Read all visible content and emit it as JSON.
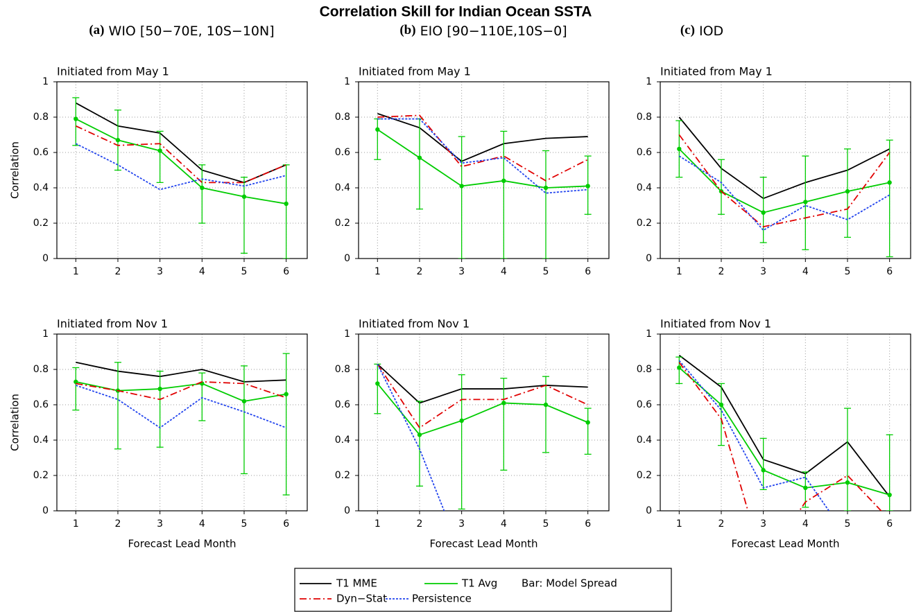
{
  "title": "Correlation Skill for Indian Ocean SSTA",
  "column_titles": [
    {
      "label": "(a)",
      "text": "WIO [50−70E, 10S−10N]"
    },
    {
      "label": "(b)",
      "text": "EIO [90−110E,10S−0]"
    },
    {
      "label": "(c)",
      "text": "IOD"
    }
  ],
  "legend_note": "Bar: Model Spread",
  "chart_data": [
    {
      "type": "line",
      "title": "Initiated from May 1",
      "y_label": "Correlation",
      "x": [
        1,
        2,
        3,
        4,
        5,
        6
      ],
      "xlim": [
        0.55,
        6.5
      ],
      "xticks": [
        1,
        2,
        3,
        4,
        5,
        6
      ],
      "ylim": [
        0,
        1
      ],
      "yticks": [
        0,
        0.2,
        0.4,
        0.6,
        0.8,
        1
      ],
      "grid": true,
      "series": [
        {
          "name": "T1 MME",
          "color": "#000000",
          "style": "solid",
          "values": [
            0.88,
            0.75,
            0.71,
            0.5,
            0.43,
            0.53
          ]
        },
        {
          "name": "T1 Avg",
          "color": "#00cc00",
          "style": "solid",
          "markers": true,
          "values": [
            0.79,
            0.67,
            0.61,
            0.4,
            0.35,
            0.31
          ],
          "low": [
            0.64,
            0.5,
            0.43,
            0.2,
            0.03,
            0.0
          ],
          "high": [
            0.91,
            0.84,
            0.72,
            0.53,
            0.46,
            0.53
          ]
        },
        {
          "name": "Dyn−Stat",
          "color": "#e00000",
          "style": "dashdot",
          "values": [
            0.75,
            0.64,
            0.65,
            0.43,
            0.43,
            0.53
          ]
        },
        {
          "name": "Persistence",
          "color": "#2244ee",
          "style": "dashed",
          "values": [
            0.65,
            0.53,
            0.39,
            0.45,
            0.41,
            0.47
          ]
        }
      ]
    },
    {
      "type": "line",
      "title": "Initiated from May 1",
      "x": [
        1,
        2,
        3,
        4,
        5,
        6
      ],
      "xlim": [
        0.55,
        6.5
      ],
      "xticks": [
        1,
        2,
        3,
        4,
        5,
        6
      ],
      "ylim": [
        0,
        1
      ],
      "yticks": [
        0,
        0.2,
        0.4,
        0.6,
        0.8,
        1
      ],
      "grid": true,
      "series": [
        {
          "name": "T1 MME",
          "color": "#000000",
          "style": "solid",
          "values": [
            0.82,
            0.74,
            0.55,
            0.65,
            0.68,
            0.69
          ]
        },
        {
          "name": "T1 Avg",
          "color": "#00cc00",
          "style": "solid",
          "markers": true,
          "values": [
            0.73,
            0.57,
            0.41,
            0.44,
            0.4,
            0.41
          ],
          "low": [
            0.56,
            0.28,
            0.0,
            0.0,
            0.0,
            0.25
          ],
          "high": [
            0.79,
            0.79,
            0.69,
            0.72,
            0.61,
            0.58
          ]
        },
        {
          "name": "Dyn−Stat",
          "color": "#e00000",
          "style": "dashdot",
          "values": [
            0.8,
            0.81,
            0.52,
            0.58,
            0.44,
            0.56
          ]
        },
        {
          "name": "Persistence",
          "color": "#2244ee",
          "style": "dashed",
          "values": [
            0.79,
            0.79,
            0.54,
            0.57,
            0.37,
            0.39
          ]
        }
      ]
    },
    {
      "type": "line",
      "title": "Initiated from May 1",
      "x": [
        1,
        2,
        3,
        4,
        5,
        6
      ],
      "xlim": [
        0.55,
        6.5
      ],
      "xticks": [
        1,
        2,
        3,
        4,
        5,
        6
      ],
      "ylim": [
        0,
        1
      ],
      "yticks": [
        0,
        0.2,
        0.4,
        0.6,
        0.8,
        1
      ],
      "grid": true,
      "series": [
        {
          "name": "T1 MME",
          "color": "#000000",
          "style": "solid",
          "values": [
            0.8,
            0.51,
            0.34,
            0.43,
            0.5,
            0.62
          ]
        },
        {
          "name": "T1 Avg",
          "color": "#00cc00",
          "style": "solid",
          "markers": true,
          "values": [
            0.62,
            0.38,
            0.26,
            0.32,
            0.38,
            0.43
          ],
          "low": [
            0.46,
            0.25,
            0.09,
            0.05,
            0.12,
            0.01
          ],
          "high": [
            0.78,
            0.56,
            0.46,
            0.58,
            0.62,
            0.67
          ]
        },
        {
          "name": "Dyn−Stat",
          "color": "#e00000",
          "style": "dashdot",
          "values": [
            0.7,
            0.38,
            0.18,
            0.23,
            0.28,
            0.6
          ]
        },
        {
          "name": "Persistence",
          "color": "#2244ee",
          "style": "dashed",
          "values": [
            0.58,
            0.43,
            0.16,
            0.3,
            0.22,
            0.36
          ]
        }
      ]
    },
    {
      "type": "line",
      "title": "Initiated from Nov 1",
      "y_label": "Correlation",
      "x_label": "Forecast Lead Month",
      "x": [
        1,
        2,
        3,
        4,
        5,
        6
      ],
      "xlim": [
        0.55,
        6.5
      ],
      "xticks": [
        1,
        2,
        3,
        4,
        5,
        6
      ],
      "ylim": [
        0,
        1
      ],
      "yticks": [
        0,
        0.2,
        0.4,
        0.6,
        0.8,
        1
      ],
      "grid": true,
      "series": [
        {
          "name": "T1 MME",
          "color": "#000000",
          "style": "solid",
          "values": [
            0.84,
            0.79,
            0.76,
            0.8,
            0.73,
            0.74
          ]
        },
        {
          "name": "T1 Avg",
          "color": "#00cc00",
          "style": "solid",
          "markers": true,
          "values": [
            0.73,
            0.68,
            0.69,
            0.72,
            0.62,
            0.66
          ],
          "low": [
            0.57,
            0.35,
            0.36,
            0.51,
            0.21,
            0.09
          ],
          "high": [
            0.81,
            0.84,
            0.79,
            0.78,
            0.82,
            0.89
          ]
        },
        {
          "name": "Dyn−Stat",
          "color": "#e00000",
          "style": "dashdot",
          "values": [
            0.72,
            0.68,
            0.63,
            0.73,
            0.72,
            0.64
          ]
        },
        {
          "name": "Persistence",
          "color": "#2244ee",
          "style": "dashed",
          "values": [
            0.71,
            0.63,
            0.47,
            0.64,
            0.56,
            0.47
          ]
        }
      ]
    },
    {
      "type": "line",
      "title": "Initiated from Nov 1",
      "x_label": "Forecast Lead Month",
      "x": [
        1,
        2,
        3,
        4,
        5,
        6
      ],
      "xlim": [
        0.55,
        6.5
      ],
      "xticks": [
        1,
        2,
        3,
        4,
        5,
        6
      ],
      "ylim": [
        0,
        1
      ],
      "yticks": [
        0,
        0.2,
        0.4,
        0.6,
        0.8,
        1
      ],
      "grid": true,
      "series": [
        {
          "name": "T1 MME",
          "color": "#000000",
          "style": "solid",
          "values": [
            0.83,
            0.61,
            0.69,
            0.69,
            0.71,
            0.7
          ]
        },
        {
          "name": "T1 Avg",
          "color": "#00cc00",
          "style": "solid",
          "markers": true,
          "values": [
            0.72,
            0.43,
            0.51,
            0.61,
            0.6,
            0.5
          ],
          "low": [
            0.55,
            0.14,
            0.01,
            0.23,
            0.33,
            0.32
          ],
          "high": [
            0.83,
            0.62,
            0.77,
            0.75,
            0.76,
            0.58
          ]
        },
        {
          "name": "Dyn−Stat",
          "color": "#e00000",
          "style": "dashdot",
          "values": [
            0.83,
            0.47,
            0.63,
            0.63,
            0.71,
            0.6
          ]
        },
        {
          "name": "Persistence",
          "color": "#2244ee",
          "style": "dashed",
          "values": [
            0.83,
            0.35,
            -0.25,
            null,
            null,
            null
          ]
        }
      ]
    },
    {
      "type": "line",
      "title": "Initiated from Nov 1",
      "x_label": "Forecast Lead Month",
      "x": [
        1,
        2,
        3,
        4,
        5,
        6
      ],
      "xlim": [
        0.55,
        6.5
      ],
      "xticks": [
        1,
        2,
        3,
        4,
        5,
        6
      ],
      "ylim": [
        0,
        1
      ],
      "yticks": [
        0,
        0.2,
        0.4,
        0.6,
        0.8,
        1
      ],
      "grid": true,
      "series": [
        {
          "name": "T1 MME",
          "color": "#000000",
          "style": "solid",
          "values": [
            0.88,
            0.7,
            0.29,
            0.21,
            0.39,
            0.08
          ]
        },
        {
          "name": "T1 Avg",
          "color": "#00cc00",
          "style": "solid",
          "markers": true,
          "values": [
            0.81,
            0.6,
            0.23,
            0.13,
            0.16,
            0.09
          ],
          "low": [
            0.72,
            0.37,
            0.12,
            0.02,
            0.0,
            0.0
          ],
          "high": [
            0.87,
            0.72,
            0.41,
            0.22,
            0.58,
            0.43
          ]
        },
        {
          "name": "Dyn−Stat",
          "color": "#e00000",
          "style": "dashdot",
          "values": [
            0.84,
            0.52,
            -0.3,
            0.05,
            0.2,
            -0.05
          ]
        },
        {
          "name": "Persistence",
          "color": "#2244ee",
          "style": "dashed",
          "values": [
            0.85,
            0.57,
            0.13,
            0.19,
            -0.15,
            -0.05
          ]
        }
      ]
    }
  ]
}
